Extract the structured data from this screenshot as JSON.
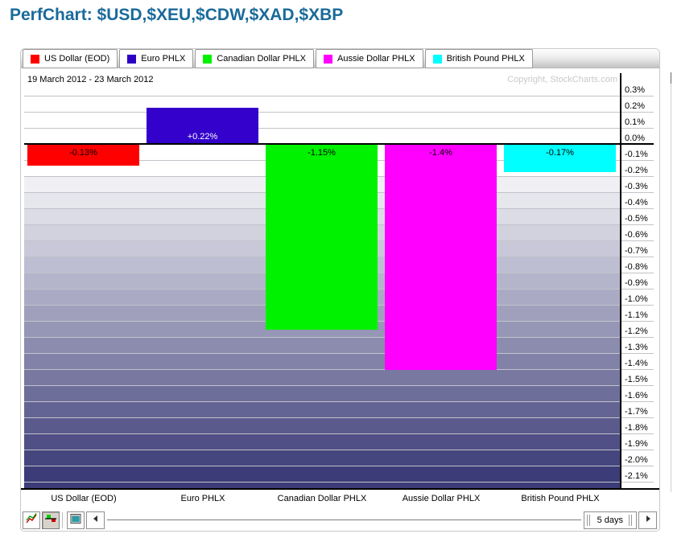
{
  "page_title": "PerfChart: $USD,$XEU,$CDW,$XAD,$XBP",
  "chart_data": {
    "type": "bar",
    "period_label": "19 March 2012 - 23 March 2012",
    "copyright": "Copyright, StockCharts.com",
    "categories": [
      "US Dollar (EOD)",
      "Euro PHLX",
      "Canadian Dollar PHLX",
      "Aussie Dollar PHLX",
      "British Pound PHLX"
    ],
    "values": [
      -0.13,
      0.22,
      -1.15,
      -1.4,
      -0.17
    ],
    "value_labels": [
      "-0.13%",
      "+0.22%",
      "-1.15%",
      "-1.4%",
      "-0.17%"
    ],
    "bar_colors": [
      "#ff0000",
      "#3300cc",
      "#00f200",
      "#ff00ff",
      "#00ffff"
    ],
    "value_label_colors": [
      "#000000",
      "#ffffff",
      "#000000",
      "#000000",
      "#000000"
    ],
    "legend": [
      {
        "label": "US Dollar (EOD)",
        "color": "#ff0000"
      },
      {
        "label": "Euro PHLX",
        "color": "#2e00c4"
      },
      {
        "label": "Canadian Dollar PHLX",
        "color": "#00f200"
      },
      {
        "label": "Aussie Dollar PHLX",
        "color": "#ff00ff"
      },
      {
        "label": "British Pound PHLX",
        "color": "#00ffff"
      }
    ],
    "legend_position": "top",
    "grid": true,
    "ylim": [
      -2.1,
      0.3
    ],
    "y_tick_step": 0.1,
    "y_ticks": [
      "0.3%",
      "0.2%",
      "0.1%",
      "0.0%",
      "-0.1%",
      "-0.2%",
      "-0.3%",
      "-0.4%",
      "-0.5%",
      "-0.6%",
      "-0.7%",
      "-0.8%",
      "-0.9%",
      "-1.0%",
      "-1.1%",
      "-1.2%",
      "-1.3%",
      "-1.4%",
      "-1.5%",
      "-1.6%",
      "-1.7%",
      "-1.8%",
      "-1.9%",
      "-2.0%",
      "-2.1%"
    ],
    "xlabel": "",
    "ylabel": ""
  },
  "toolbar": {
    "range_label": "5 days",
    "buttons": [
      "line-chart-mode",
      "histogram-mode",
      "snapshot"
    ]
  },
  "colors": {
    "title": "#1a6a9a",
    "gridline": "#c2c2ca",
    "zero_line": "#000000",
    "plot_bg_top": "#ffffff",
    "gradient_light": "#fafafb",
    "gradient_dark": "#3c3c78"
  }
}
